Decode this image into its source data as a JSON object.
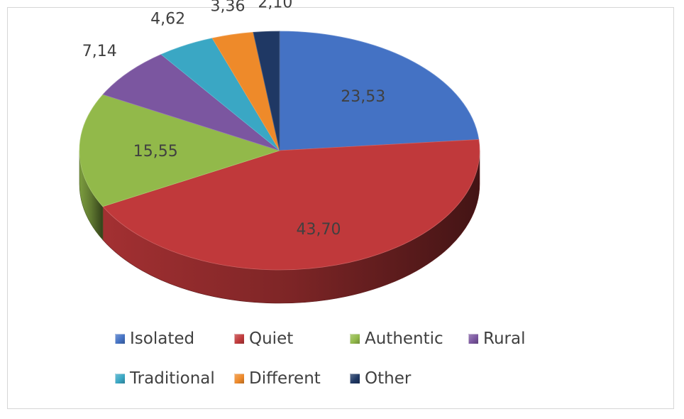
{
  "chart_data": {
    "type": "pie",
    "title": "",
    "categories": [
      "Isolated",
      "Quiet",
      "Authentic",
      "Rural",
      "Traditional",
      "Different",
      "Other"
    ],
    "values": [
      23.53,
      43.7,
      15.55,
      7.14,
      4.62,
      3.36,
      2.1
    ],
    "value_labels": [
      "23,53",
      "43,70",
      "15,55",
      "7,14",
      "4,62",
      "3,36",
      "2,10"
    ],
    "colors": [
      "#4472c4",
      "#c0393b",
      "#92b94a",
      "#7b56a0",
      "#3aa7c4",
      "#ee8a2a",
      "#1f3864"
    ],
    "style": "3d-pie",
    "legend_position": "bottom"
  }
}
